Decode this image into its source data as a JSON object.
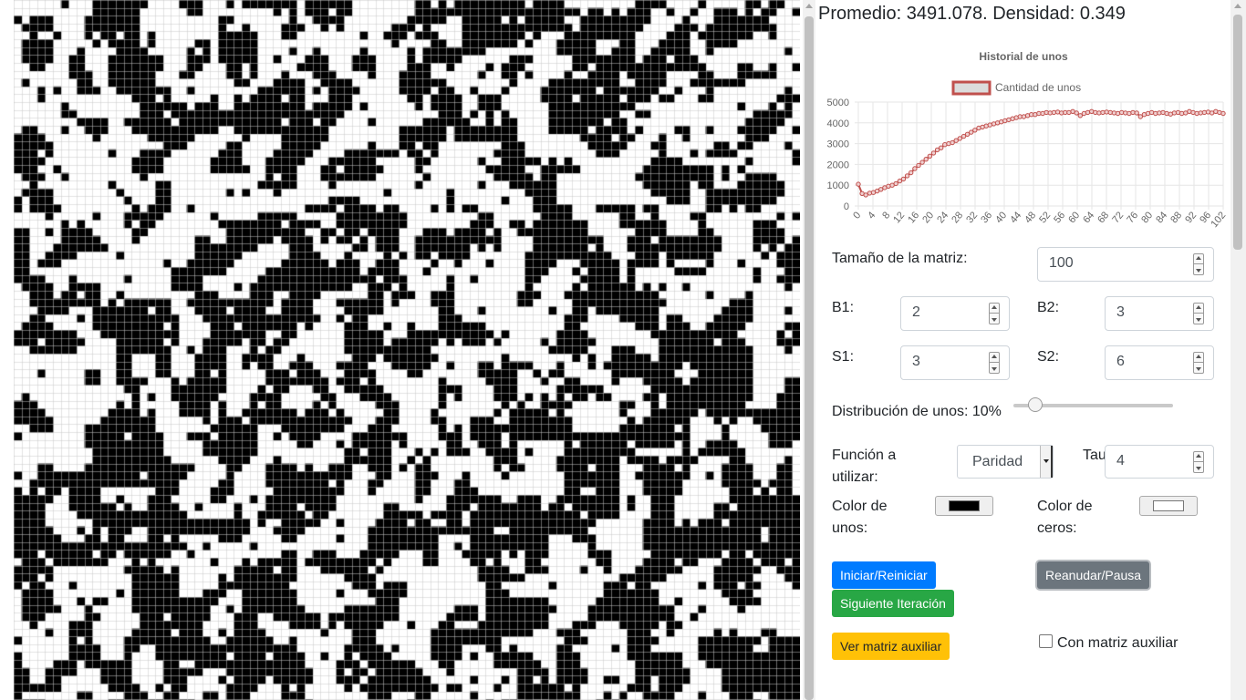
{
  "matrix": {
    "rows": 100,
    "cols": 100,
    "density": 0.349,
    "one_color": "#000000",
    "zero_color": "#ffffff",
    "line_color": "#c8c8c8"
  },
  "stats": {
    "text": "Promedio: 3491.078. Densidad: 0.349"
  },
  "chart_data": {
    "type": "line",
    "title": "Historial de unos",
    "legend": "top",
    "series": [
      {
        "name": "Cantidad de unos",
        "color": "#c0504d",
        "values": [
          1050,
          600,
          530,
          620,
          650,
          720,
          800,
          880,
          950,
          1000,
          1080,
          1200,
          1300,
          1450,
          1600,
          1800,
          1950,
          2100,
          2250,
          2400,
          2550,
          2700,
          2800,
          2950,
          3000,
          3050,
          3150,
          3250,
          3350,
          3450,
          3550,
          3650,
          3750,
          3800,
          3850,
          3900,
          3950,
          4000,
          4050,
          4100,
          4150,
          4200,
          4250,
          4300,
          4300,
          4350,
          4400,
          4400,
          4450,
          4450,
          4500,
          4480,
          4500,
          4520,
          4480,
          4500,
          4500,
          4550,
          4480,
          4350,
          4450,
          4500,
          4550,
          4500,
          4480,
          4500,
          4520,
          4500,
          4480,
          4450,
          4500,
          4480,
          4450,
          4500,
          4480,
          4300,
          4400,
          4450,
          4500,
          4450,
          4480,
          4500,
          4450,
          4420,
          4480,
          4500,
          4450,
          4480,
          4550,
          4500,
          4450,
          4480,
          4500,
          4520,
          4480,
          4550,
          4500,
          4450
        ]
      }
    ],
    "x_tick_labels": [
      "0",
      "4",
      "8",
      "12",
      "16",
      "20",
      "24",
      "28",
      "32",
      "36",
      "40",
      "44",
      "48",
      "52",
      "56",
      "60",
      "64",
      "68",
      "72",
      "76",
      "80",
      "84",
      "88",
      "92",
      "96",
      "102"
    ],
    "y_tick_labels": [
      "0",
      "1000",
      "2000",
      "3000",
      "4000",
      "5000"
    ],
    "ylim": [
      0,
      5000
    ],
    "grid": true
  },
  "controls": {
    "size_label": "Tamaño de la matriz:",
    "size_value": "100",
    "b1_label": "B1:",
    "b1_value": "2",
    "b2_label": "B2:",
    "b2_value": "3",
    "s1_label": "S1:",
    "s1_value": "3",
    "s2_label": "S2:",
    "s2_value": "6",
    "distribution_label": "Distribución de unos: 10%",
    "distribution_percent": 10,
    "function_label_line1": "Función a",
    "function_label_line2": "utilizar:",
    "function_value": "Paridad",
    "tau_label": "Tau:",
    "tau_value": "4",
    "ones_color_line1": "Color de",
    "ones_color_line2": "unos:",
    "ones_color_value": "#000000",
    "zeros_color_line1": "Color de",
    "zeros_color_line2": "ceros:",
    "zeros_color_value": "#ffffff",
    "aux_checkbox_label": "Con matriz auxiliar"
  },
  "buttons": {
    "start": {
      "label": "Iniciar/Reiniciar",
      "color": "#007bff"
    },
    "resume": {
      "label": "Reanudar/Pausa",
      "color": "#6c757d"
    },
    "next": {
      "label": "Siguiente Iteración",
      "color": "#28a745"
    },
    "aux": {
      "label": "Ver matriz auxiliar",
      "color": "#ffc107"
    }
  }
}
